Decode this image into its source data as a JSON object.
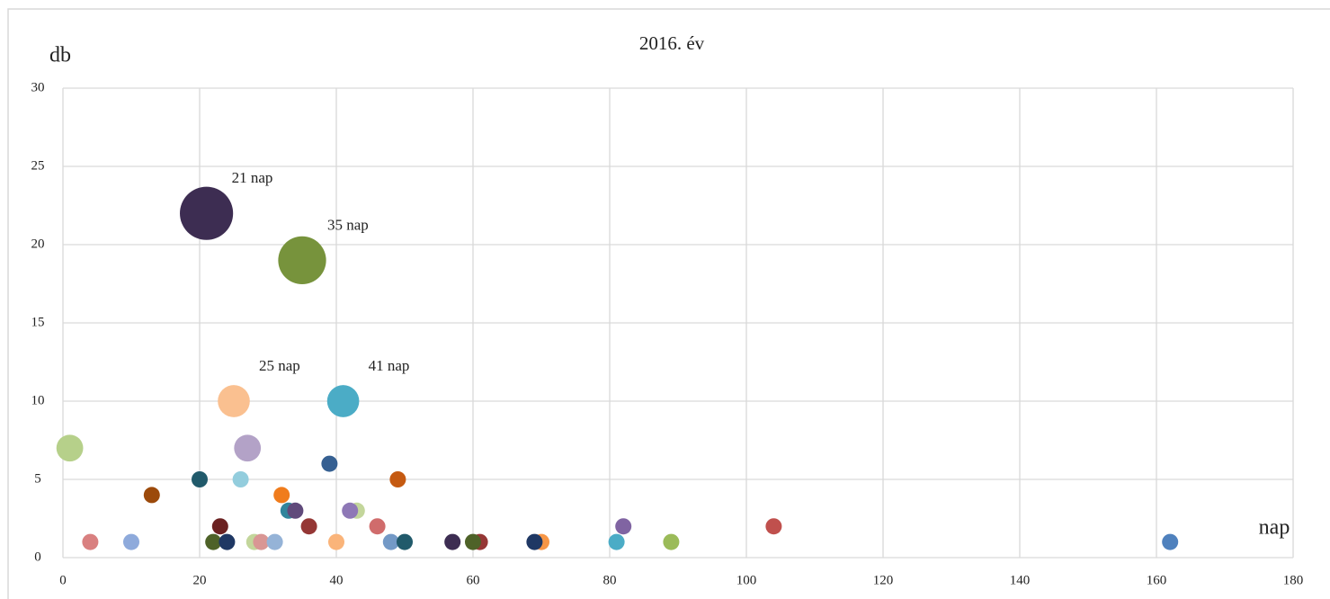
{
  "chart_data": {
    "type": "bubble",
    "title": "2016. év",
    "x_label": "nap",
    "y_label": "db",
    "xlim": [
      0,
      180
    ],
    "ylim": [
      0,
      30
    ],
    "xticks": [
      0,
      20,
      40,
      60,
      80,
      100,
      120,
      140,
      160,
      180
    ],
    "yticks": [
      0,
      5,
      10,
      15,
      20,
      25,
      30
    ],
    "grid": true,
    "x": [
      1,
      4,
      10,
      13,
      20,
      21,
      22,
      23,
      24,
      25,
      26,
      27,
      28,
      29,
      31,
      32,
      33,
      34,
      35,
      36,
      39,
      40,
      41,
      43,
      42,
      46,
      48,
      49,
      50,
      57,
      61,
      60,
      70,
      69,
      81,
      82,
      89,
      104,
      162
    ],
    "values": [
      7,
      1,
      1,
      4,
      5,
      22,
      1,
      2,
      1,
      10,
      5,
      7,
      1,
      1,
      1,
      4,
      3,
      3,
      19,
      2,
      6,
      1,
      10,
      3,
      3,
      2,
      1,
      5,
      1,
      1,
      1,
      1,
      1,
      1,
      1,
      2,
      1,
      2,
      1
    ],
    "sizes": [
      7,
      1,
      1,
      1,
      1,
      22,
      1,
      1,
      1,
      10,
      1,
      7,
      1,
      1,
      1,
      1,
      1,
      1,
      19,
      1,
      1,
      1,
      10,
      1,
      1,
      1,
      1,
      1,
      1,
      1,
      1,
      1,
      1,
      1,
      1,
      1,
      1,
      1,
      1
    ],
    "colors": [
      "#b6d08a",
      "#d98080",
      "#8eaadb",
      "#9c4a0b",
      "#215a6b",
      "#3d2d52",
      "#4e6228",
      "#6b2121",
      "#1f3864",
      "#fac090",
      "#93cddd",
      "#b3a2c7",
      "#c3d69b",
      "#d99694",
      "#95b3d7",
      "#f07c1c",
      "#31859c",
      "#604a7b",
      "#77933c",
      "#953735",
      "#366092",
      "#fab47a",
      "#4bacc6",
      "#c3d69b",
      "#8e78b6",
      "#d06c6c",
      "#7399c6",
      "#c55a11",
      "#215a6b",
      "#3d2d52",
      "#953735",
      "#4e6228",
      "#f79646",
      "#1f3864",
      "#4bacc6",
      "#8064a2",
      "#9bbb59",
      "#c0504d",
      "#4f81bd"
    ],
    "annotations": [
      {
        "text": "21 nap",
        "x": 21,
        "y": 22
      },
      {
        "text": "35 nap",
        "x": 35,
        "y": 19
      },
      {
        "text": "25 nap",
        "x": 25,
        "y": 10
      },
      {
        "text": "41 nap",
        "x": 41,
        "y": 10
      }
    ]
  }
}
